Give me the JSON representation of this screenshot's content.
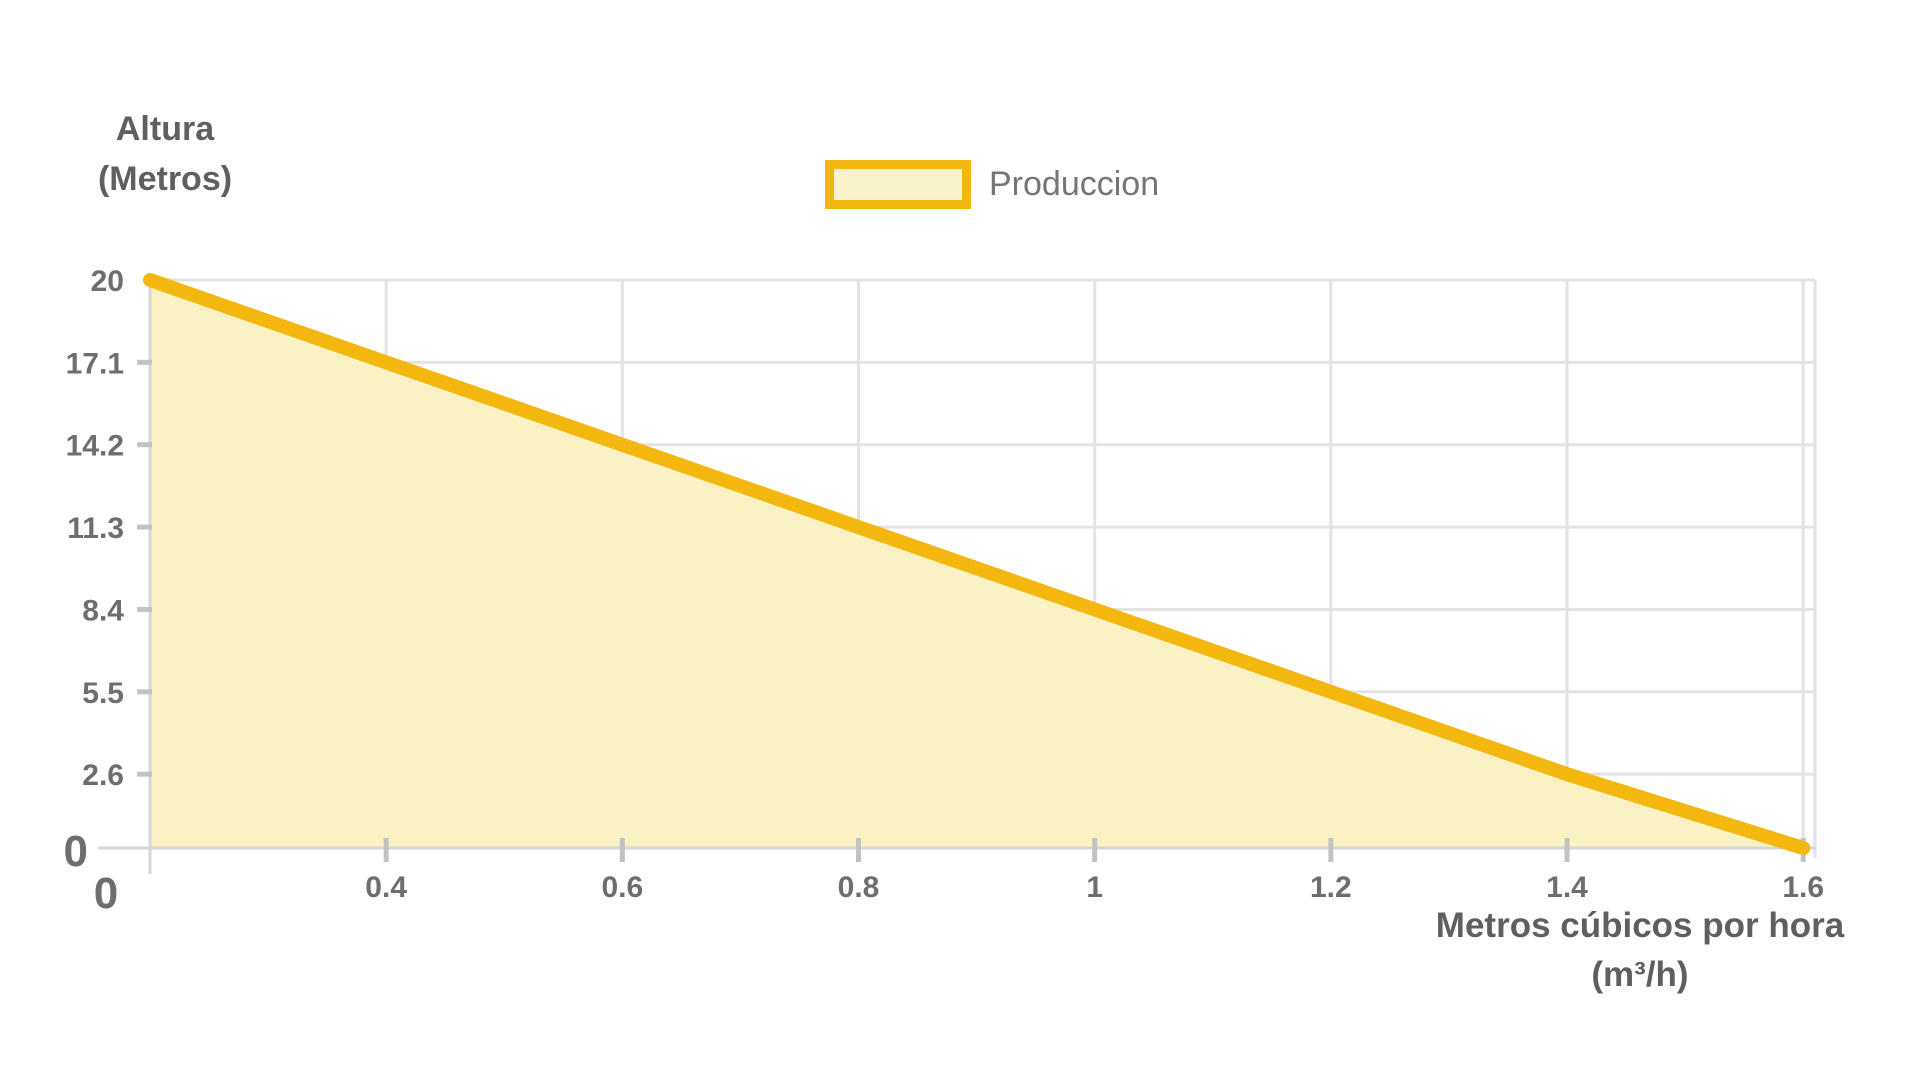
{
  "chart_data": {
    "type": "area",
    "title": "",
    "xlabel_line1": "Metros cúbicos por hora",
    "xlabel_line2": "(m³/h)",
    "ylabel_line1": "Altura",
    "ylabel_line2": "(Metros)",
    "legend": {
      "label": "Produccion",
      "position": "top-center"
    },
    "series": [
      {
        "name": "Produccion",
        "x": [
          0.2,
          0.4,
          0.6,
          0.8,
          1.0,
          1.2,
          1.4,
          1.6
        ],
        "y": [
          20,
          17.1,
          14.2,
          11.3,
          8.4,
          5.5,
          2.6,
          0
        ]
      }
    ],
    "x_ticks": [
      0.4,
      0.6,
      0.8,
      1,
      1.2,
      1.4,
      1.6
    ],
    "x_tick_labels": [
      "0.4",
      "0.6",
      "0.8",
      "1",
      "1.2",
      "1.4",
      "1.6"
    ],
    "y_ticks": [
      20,
      17.1,
      14.2,
      11.3,
      8.4,
      5.5,
      2.6
    ],
    "y_tick_labels": [
      "20",
      "17.1",
      "14.2",
      "11.3",
      "8.4",
      "5.5",
      "2.6"
    ],
    "origin_labels": {
      "y_zero": "0",
      "x_zero": "0"
    },
    "xlim": [
      0.2,
      1.61
    ],
    "ylim": [
      0,
      20
    ],
    "grid": true,
    "colors": {
      "line": "#f3b70d",
      "fill": "#faf1c4",
      "grid": "#e3e3e3",
      "axis": "#d6d6d6",
      "tick": "#c2c2c2",
      "tick_text": "#6e6e6e",
      "title_text": "#5f5f5f",
      "legend_text": "#757575",
      "background": "#ffffff"
    }
  }
}
